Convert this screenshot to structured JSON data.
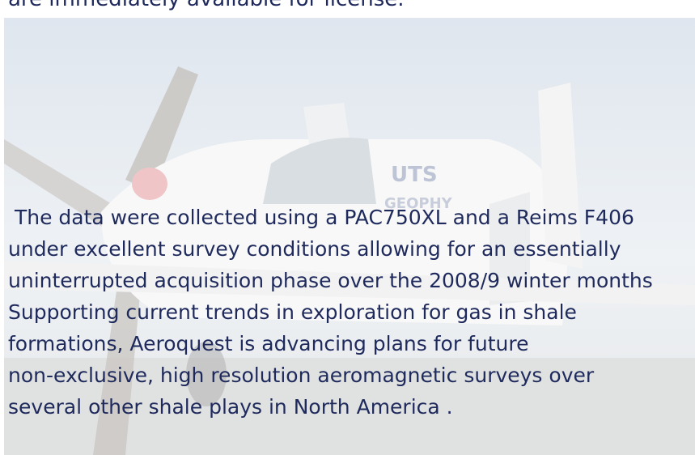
{
  "header": {
    "text": "are immediately available for license."
  },
  "body": {
    "lines": [
      " The data were collected using a PAC750XL and a Reims F406",
      "under excellent survey conditions allowing for an essentially",
      "uninterrupted acquisition phase over the 2008/9 winter months",
      "Supporting current trends in exploration for gas in shale",
      "formations, Aeroquest is advancing plans for future",
      "non-exclusive, high resolution aeromagnetic surveys over",
      "several other shale plays in North America ."
    ]
  },
  "photo": {
    "logo": "UTS",
    "logo_sub": "GEOPHY"
  }
}
